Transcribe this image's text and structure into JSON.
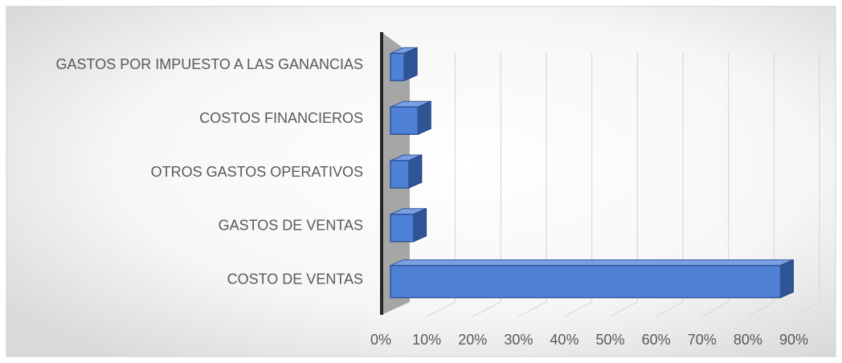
{
  "chart_data": {
    "type": "bar3d_horizontal",
    "categories": [
      "COSTO DE VENTAS",
      "GASTOS DE VENTAS",
      "OTROS GASTOS OPERATIVOS",
      "COSTOS FINANCIEROS",
      "GASTOS POR IMPUESTO A LAS GANANCIAS"
    ],
    "values": [
      85,
      5,
      4,
      6,
      3
    ],
    "color": "#4f81d6",
    "xlim": [
      0,
      90
    ],
    "xticks": [
      {
        "value": 0,
        "label": "0%"
      },
      {
        "value": 10,
        "label": "10%"
      },
      {
        "value": 20,
        "label": "20%"
      },
      {
        "value": 30,
        "label": "30%"
      },
      {
        "value": 40,
        "label": "40%"
      },
      {
        "value": 50,
        "label": "50%"
      },
      {
        "value": 60,
        "label": "60%"
      },
      {
        "value": 70,
        "label": "70%"
      },
      {
        "value": 80,
        "label": "80%"
      },
      {
        "value": 90,
        "label": "90%"
      }
    ],
    "grid": true
  }
}
